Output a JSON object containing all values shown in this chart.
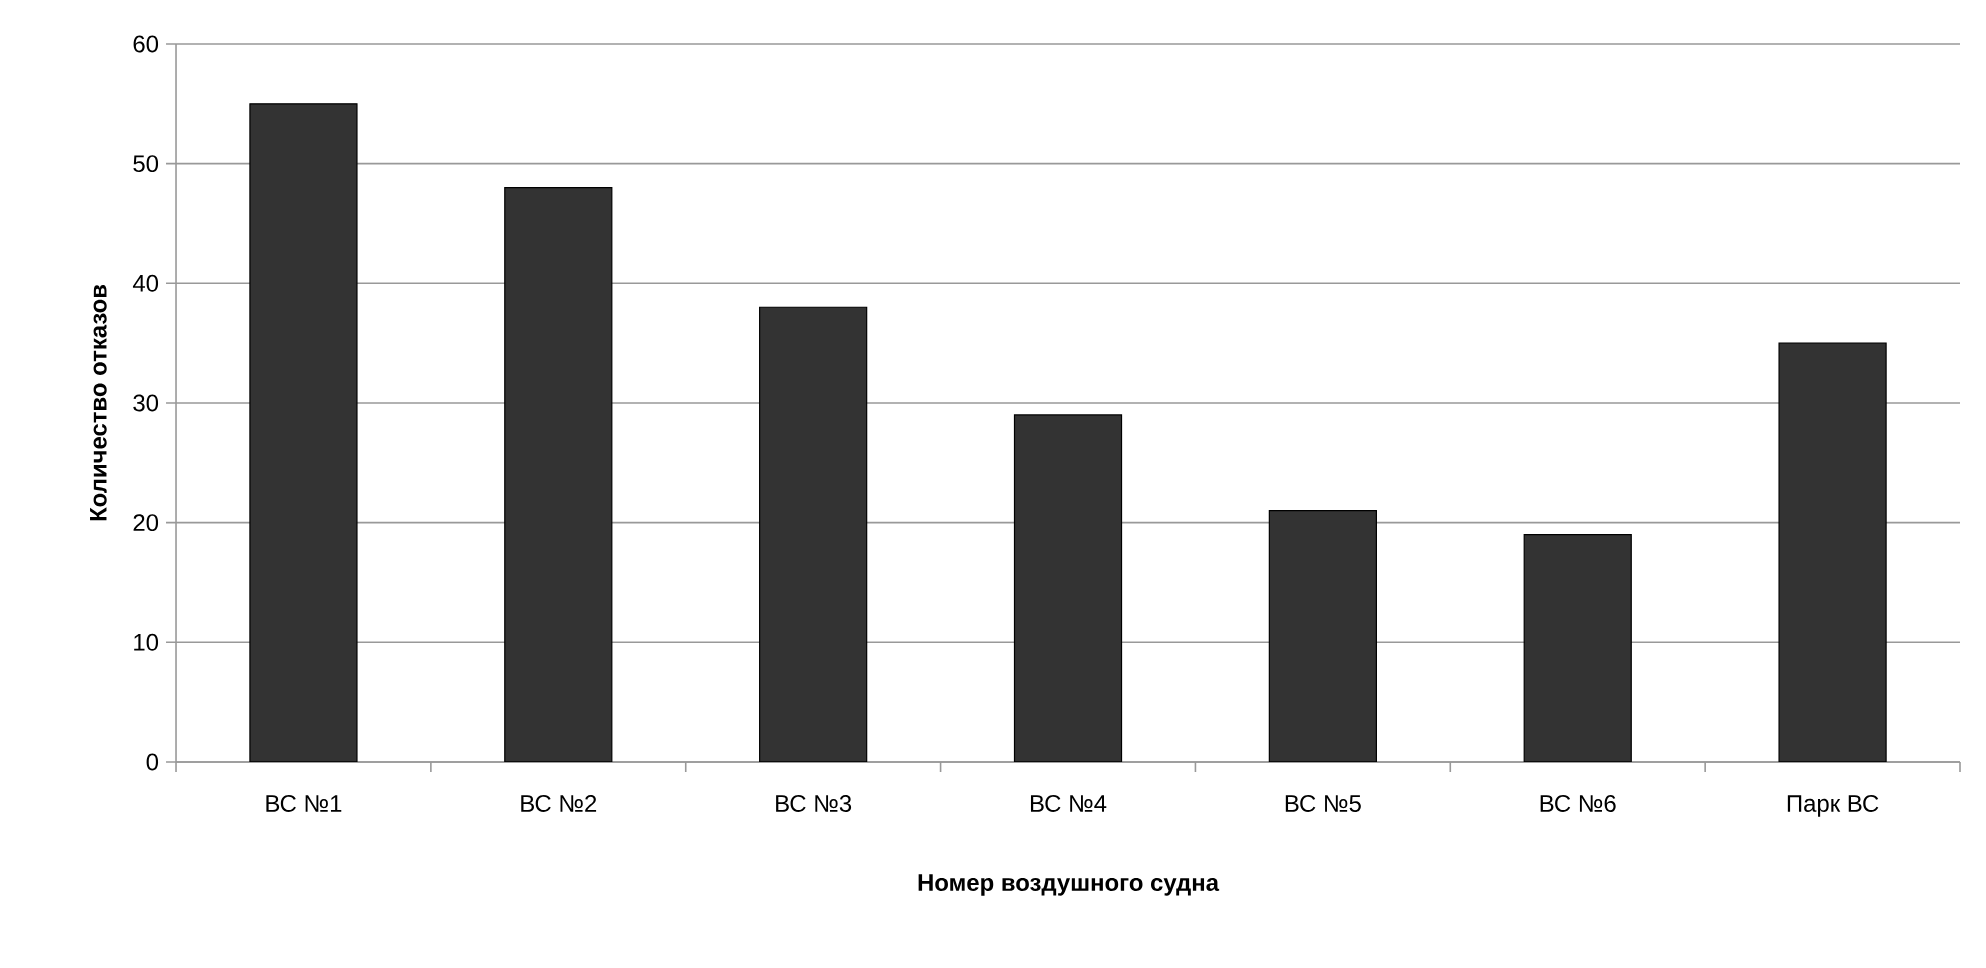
{
  "chart_data": {
    "type": "bar",
    "xlabel": "Номер воздушного судна",
    "ylabel": "Количество отказов",
    "categories": [
      "ВС №1",
      "ВС №2",
      "ВС №3",
      "ВС №4",
      "ВС №5",
      "ВС №6",
      "Парк ВС"
    ],
    "values": [
      55,
      48,
      38,
      29,
      21,
      19,
      35
    ],
    "color": "#333333",
    "ylim": [
      0,
      60
    ],
    "yticks": [
      0,
      10,
      20,
      30,
      40,
      50,
      60
    ],
    "grid": "y"
  }
}
